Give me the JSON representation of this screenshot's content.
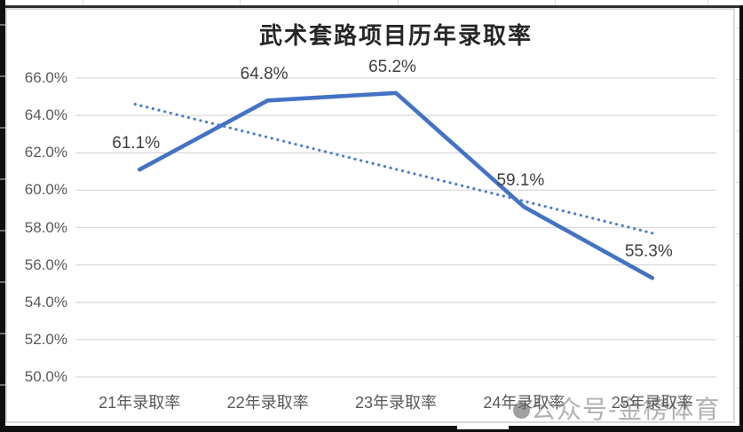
{
  "chart_data": {
    "type": "line",
    "title": "武术套路项目历年录取率",
    "categories": [
      "21年录取率",
      "22年录取率",
      "23年录取率",
      "24年录取率",
      "25年录取率"
    ],
    "series": [
      {
        "style": "solid",
        "values_percent": [
          61.1,
          64.8,
          65.2,
          59.1,
          55.3
        ]
      },
      {
        "style": "dotted-trendline",
        "endpoints_percent": [
          64.6,
          57.7
        ]
      }
    ],
    "data_labels": [
      "61.1%",
      "64.8%",
      "65.2%",
      "59.1%",
      "55.3%"
    ],
    "y_ticks": [
      "66.0%",
      "64.0%",
      "62.0%",
      "60.0%",
      "58.0%",
      "56.0%",
      "54.0%",
      "52.0%",
      "50.0%"
    ],
    "ylim_percent": [
      50.0,
      66.0
    ],
    "grid": "horizontal",
    "legend": "none",
    "colors": {
      "series": "#4472C4",
      "trend": "#4a7dc9",
      "gridline": "#dadada",
      "axis_text": "#595959",
      "data_label_text": "#3f3f3f",
      "title_text": "#262626"
    }
  },
  "watermark": {
    "icon": "wechat-blob-icon",
    "text": "公众号-金榜体育"
  }
}
